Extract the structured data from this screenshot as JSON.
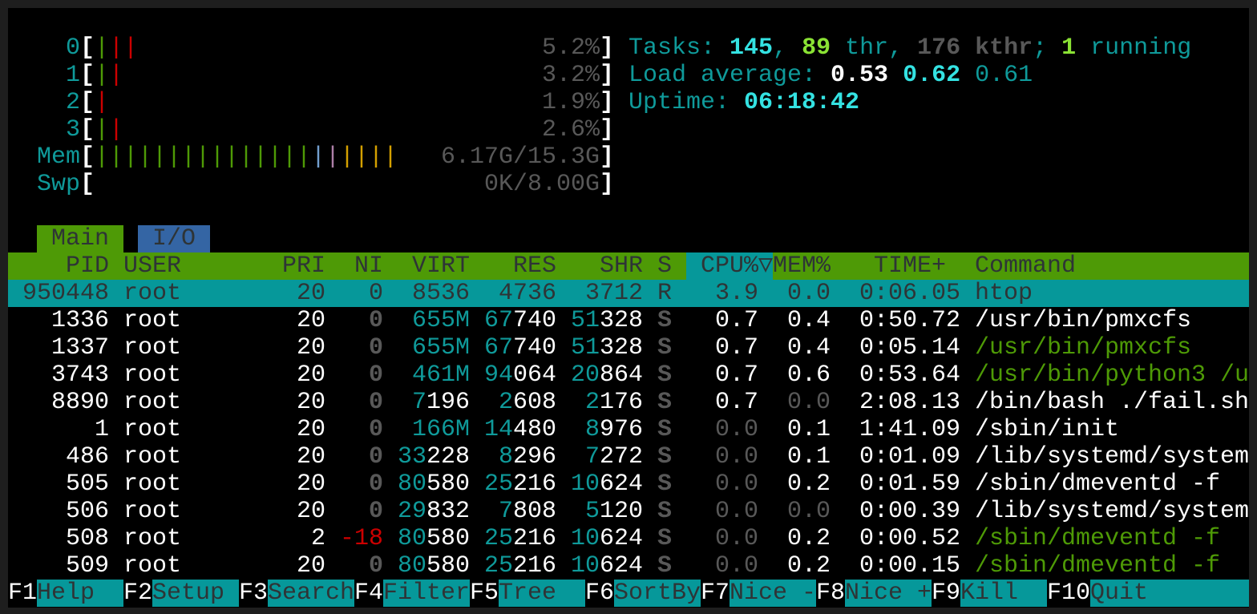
{
  "colors": {
    "header_bg": "#4e9a06",
    "selected_bg": "#06989a",
    "io_tab_bg": "#3465a4",
    "accent_teal": "#0f9a9a",
    "red": "#cc0000"
  },
  "meters": [
    {
      "label": "0",
      "value": "5.2%",
      "bars": [
        "green",
        "red",
        "red"
      ]
    },
    {
      "label": "1",
      "value": "3.2%",
      "bars": [
        "green",
        "red"
      ]
    },
    {
      "label": "2",
      "value": "1.9%",
      "bars": [
        "red"
      ]
    },
    {
      "label": "3",
      "value": "2.6%",
      "bars": [
        "green",
        "red"
      ]
    },
    {
      "label": "Mem",
      "value": "6.17G/15.3G",
      "bars": [
        "green",
        "green",
        "green",
        "green",
        "green",
        "green",
        "green",
        "green",
        "green",
        "green",
        "green",
        "green",
        "green",
        "green",
        "green",
        "blue",
        "purple",
        "yellow",
        "yellow",
        "yellow",
        "yellow"
      ]
    },
    {
      "label": "Swp",
      "value": "0K/8.00G",
      "bars": []
    }
  ],
  "summary": [
    [
      {
        "t": "Tasks: ",
        "s": "teal"
      },
      {
        "t": "145",
        "s": "bcyan"
      },
      {
        "t": ", ",
        "s": "teal"
      },
      {
        "t": "89",
        "s": "bgreen"
      },
      {
        "t": " thr, ",
        "s": "teal"
      },
      {
        "t": "176",
        "s": "bgray"
      },
      {
        "t": " kthr",
        "s": "bgray"
      },
      {
        "t": "; ",
        "s": "teal"
      },
      {
        "t": "1",
        "s": "bgreen"
      },
      {
        "t": " running",
        "s": "teal"
      }
    ],
    [
      {
        "t": "Load average: ",
        "s": "teal"
      },
      {
        "t": "0.53",
        "s": "bwhite"
      },
      {
        "t": " ",
        "s": "teal"
      },
      {
        "t": "0.62",
        "s": "bcyan"
      },
      {
        "t": " ",
        "s": "teal"
      },
      {
        "t": "0.61",
        "s": "teal"
      }
    ],
    [
      {
        "t": "Uptime: ",
        "s": "teal"
      },
      {
        "t": "06:18:42",
        "s": "bcyan"
      }
    ]
  ],
  "tabs": [
    {
      "label": "Main",
      "active": true
    },
    {
      "label": "I/O",
      "active": false
    }
  ],
  "columns": {
    "pid": "PID",
    "user": "USER",
    "pri": "PRI",
    "ni": "NI",
    "virt": "VIRT",
    "res": "RES",
    "shr": "SHR",
    "s": "S",
    "cpu": "CPU%",
    "sort_indicator": "▽",
    "mem": "MEM%",
    "time": "TIME+",
    "command": "Command"
  },
  "processes": [
    {
      "pid": "950448",
      "user": "root",
      "pri": "20",
      "ni": "0",
      "virt": "8536",
      "res": "4736",
      "shr": "3712",
      "s": "R",
      "cpu": "3.9",
      "mem": "0.0",
      "time": "0:06.05",
      "command": "htop",
      "thread": false,
      "selected": true
    },
    {
      "pid": "1336",
      "user": "root",
      "pri": "20",
      "ni": "0",
      "virt": "655M",
      "res": "67740",
      "shr": "51328",
      "s": "S",
      "cpu": "0.7",
      "mem": "0.4",
      "time": "0:50.72",
      "command": "/usr/bin/pmxcfs",
      "thread": false
    },
    {
      "pid": "1337",
      "user": "root",
      "pri": "20",
      "ni": "0",
      "virt": "655M",
      "res": "67740",
      "shr": "51328",
      "s": "S",
      "cpu": "0.7",
      "mem": "0.4",
      "time": "0:05.14",
      "command": "/usr/bin/pmxcfs",
      "thread": true
    },
    {
      "pid": "3743",
      "user": "root",
      "pri": "20",
      "ni": "0",
      "virt": "461M",
      "res": "94064",
      "shr": "20864",
      "s": "S",
      "cpu": "0.7",
      "mem": "0.6",
      "time": "0:53.64",
      "command": "/usr/bin/python3 /u",
      "thread": true
    },
    {
      "pid": "8890",
      "user": "root",
      "pri": "20",
      "ni": "0",
      "virt": "7196",
      "res": "2608",
      "shr": "2176",
      "s": "S",
      "cpu": "0.7",
      "mem": "0.0",
      "time": "2:08.13",
      "command": "/bin/bash ./fail.sh",
      "thread": false
    },
    {
      "pid": "1",
      "user": "root",
      "pri": "20",
      "ni": "0",
      "virt": "166M",
      "res": "14480",
      "shr": "8976",
      "s": "S",
      "cpu": "0.0",
      "mem": "0.1",
      "time": "1:41.09",
      "command": "/sbin/init",
      "thread": false
    },
    {
      "pid": "486",
      "user": "root",
      "pri": "20",
      "ni": "0",
      "virt": "33228",
      "res": "8296",
      "shr": "7272",
      "s": "S",
      "cpu": "0.0",
      "mem": "0.1",
      "time": "0:01.09",
      "command": "/lib/systemd/system",
      "thread": false
    },
    {
      "pid": "505",
      "user": "root",
      "pri": "20",
      "ni": "0",
      "virt": "80580",
      "res": "25216",
      "shr": "10624",
      "s": "S",
      "cpu": "0.0",
      "mem": "0.2",
      "time": "0:01.59",
      "command": "/sbin/dmeventd -f",
      "thread": false
    },
    {
      "pid": "506",
      "user": "root",
      "pri": "20",
      "ni": "0",
      "virt": "29832",
      "res": "7808",
      "shr": "5120",
      "s": "S",
      "cpu": "0.0",
      "mem": "0.0",
      "time": "0:00.39",
      "command": "/lib/systemd/system",
      "thread": false
    },
    {
      "pid": "508",
      "user": "root",
      "pri": "2",
      "ni": "-18",
      "virt": "80580",
      "res": "25216",
      "shr": "10624",
      "s": "S",
      "cpu": "0.0",
      "mem": "0.2",
      "time": "0:00.52",
      "command": "/sbin/dmeventd -f",
      "thread": true
    },
    {
      "pid": "509",
      "user": "root",
      "pri": "20",
      "ni": "0",
      "virt": "80580",
      "res": "25216",
      "shr": "10624",
      "s": "S",
      "cpu": "0.0",
      "mem": "0.2",
      "time": "0:00.15",
      "command": "/sbin/dmeventd -f",
      "thread": true
    }
  ],
  "function_keys": [
    {
      "key": "F1",
      "label": "Help"
    },
    {
      "key": "F2",
      "label": "Setup"
    },
    {
      "key": "F3",
      "label": "Search"
    },
    {
      "key": "F4",
      "label": "Filter"
    },
    {
      "key": "F5",
      "label": "Tree"
    },
    {
      "key": "F6",
      "label": "SortBy"
    },
    {
      "key": "F7",
      "label": "Nice -"
    },
    {
      "key": "F8",
      "label": "Nice +"
    },
    {
      "key": "F9",
      "label": "Kill"
    },
    {
      "key": "F10",
      "label": "Quit"
    }
  ]
}
